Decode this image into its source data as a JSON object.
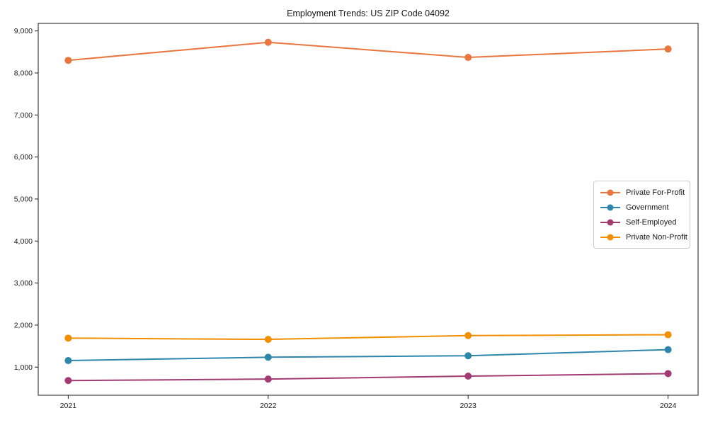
{
  "chart_data": {
    "type": "line",
    "title": "Employment Trends: US ZIP Code 04092",
    "x": [
      2021,
      2022,
      2023,
      2024
    ],
    "x_tick_labels": [
      "2021",
      "2022",
      "2023",
      "2024"
    ],
    "y_ticks": [
      1000,
      2000,
      3000,
      4000,
      5000,
      6000,
      7000,
      8000,
      9000
    ],
    "y_tick_labels": [
      "1,000",
      "2,000",
      "3,000",
      "4,000",
      "5,000",
      "6,000",
      "7,000",
      "8,000",
      "9,000"
    ],
    "xlim": [
      2020.85,
      2024.15
    ],
    "ylim": [
      330,
      9180
    ],
    "grid": false,
    "legend_position": "center-right",
    "marker": "circle",
    "series": [
      {
        "name": "Private For-Profit",
        "color": "#E8763E",
        "values": [
          8300,
          8730,
          8370,
          8570
        ]
      },
      {
        "name": "Government",
        "color": "#2E86AB",
        "values": [
          1155,
          1235,
          1270,
          1415
        ]
      },
      {
        "name": "Self-Employed",
        "color": "#A23B72",
        "values": [
          680,
          715,
          785,
          845
        ]
      },
      {
        "name": "Private Non-Profit",
        "color": "#F18F01",
        "values": [
          1690,
          1660,
          1750,
          1770
        ]
      }
    ],
    "xlabel": "",
    "ylabel": "",
    "axis_color": "#1a1a1a",
    "background": "#ffffff"
  }
}
